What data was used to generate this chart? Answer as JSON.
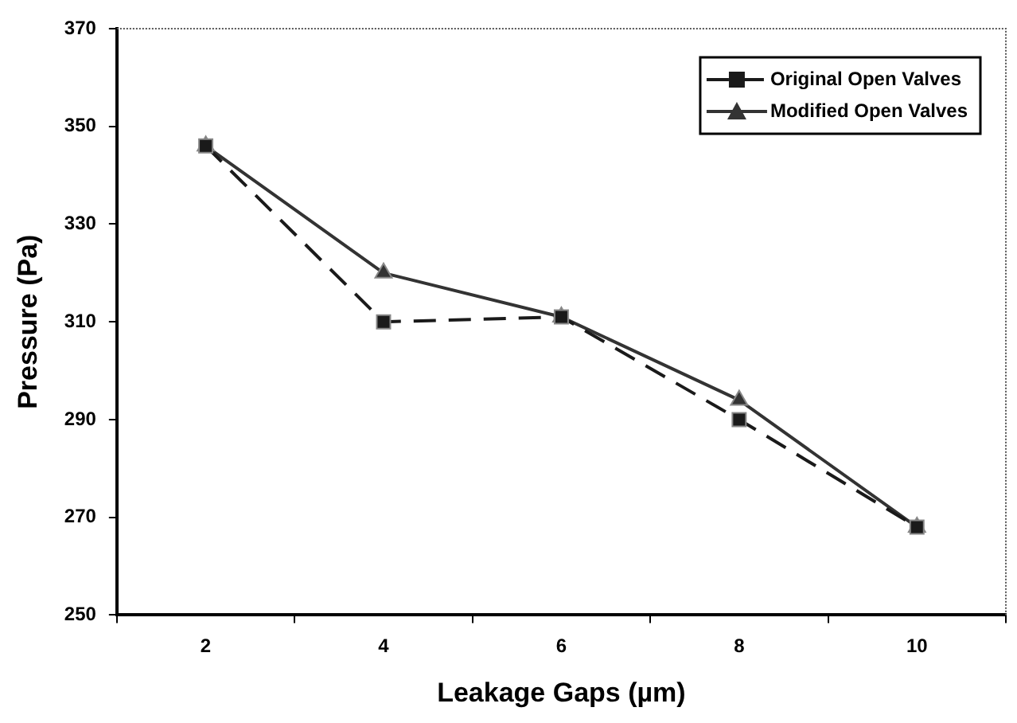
{
  "chart_data": {
    "type": "line",
    "xlabel": "Leakage Gaps (µm)",
    "ylabel": "Pressure (Pa)",
    "categories": [
      "2",
      "4",
      "6",
      "8",
      "10"
    ],
    "series": [
      {
        "name": "Original Open Valves",
        "color": "#1a1a1a",
        "marker": "square",
        "line_style": "dashed",
        "values": [
          346,
          310,
          311,
          290,
          268
        ]
      },
      {
        "name": "Modified Open Valves",
        "color": "#333333",
        "marker": "triangle",
        "line_style": "solid",
        "values": [
          346,
          320,
          311,
          294,
          268
        ]
      }
    ],
    "ylim": [
      250,
      370
    ],
    "yticks": [
      250,
      270,
      290,
      310,
      330,
      350,
      370
    ],
    "grid": false,
    "legend": "top right"
  }
}
